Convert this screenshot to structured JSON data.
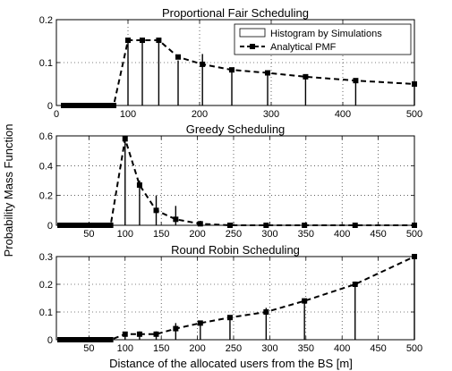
{
  "figure": {
    "ylabel": "Probability Mass Function",
    "xlabel": "Distance of the allocated users from the BS [m]"
  },
  "chart_data": [
    {
      "type": "bar",
      "title": "Proportional Fair Scheduling",
      "xlim": [
        0,
        500
      ],
      "ylim": [
        0,
        0.2
      ],
      "xticks": [
        0,
        100,
        200,
        300,
        400,
        500
      ],
      "yticks": [
        0,
        0.1,
        0.2
      ],
      "grid": true,
      "legend": {
        "placement": "top-right",
        "entries": [
          "Histogram by Simulations",
          "Analytical PMF"
        ]
      },
      "x": [
        10,
        15,
        20,
        25,
        30,
        35,
        40,
        45,
        50,
        55,
        60,
        65,
        70,
        75,
        80,
        100,
        120,
        143,
        170,
        204,
        245,
        295,
        348,
        418,
        500
      ],
      "series": [
        {
          "name": "Histogram by Simulations",
          "style": "stem",
          "values": [
            0,
            0,
            0,
            0,
            0,
            0,
            0,
            0,
            0,
            0,
            0,
            0,
            0,
            0,
            0,
            0.15,
            0.155,
            0.155,
            0.105,
            0.12,
            0.083,
            0.077,
            0.069,
            0.06,
            0.055
          ]
        },
        {
          "name": "Analytical PMF",
          "style": "dashed-square",
          "values": [
            0,
            0,
            0,
            0,
            0,
            0,
            0,
            0,
            0,
            0,
            0,
            0,
            0,
            0,
            0,
            0.152,
            0.152,
            0.152,
            0.113,
            0.096,
            0.083,
            0.076,
            0.067,
            0.058,
            0.05
          ]
        }
      ]
    },
    {
      "type": "bar",
      "title": "Greedy Scheduling",
      "xlim": [
        5,
        500
      ],
      "ylim": [
        0,
        0.6
      ],
      "xticks": [
        50,
        100,
        150,
        200,
        250,
        300,
        350,
        400,
        450,
        500
      ],
      "yticks": [
        0,
        0.2,
        0.4,
        0.6
      ],
      "grid": true,
      "x": [
        10,
        15,
        20,
        25,
        30,
        35,
        40,
        45,
        50,
        55,
        60,
        65,
        70,
        75,
        80,
        100,
        120,
        143,
        170,
        204,
        245,
        295,
        348,
        418,
        500
      ],
      "series": [
        {
          "name": "Histogram by Simulations",
          "style": "stem",
          "values": [
            0,
            0,
            0,
            0,
            0,
            0,
            0,
            0,
            0,
            0,
            0,
            0,
            0,
            0,
            0,
            0.6,
            0.3,
            0.2,
            0.13,
            0.03,
            0.01,
            0,
            0,
            0,
            0
          ]
        },
        {
          "name": "Analytical PMF",
          "style": "dashed-square",
          "values": [
            0,
            0,
            0,
            0,
            0,
            0,
            0,
            0,
            0,
            0,
            0,
            0,
            0,
            0,
            0,
            0.58,
            0.27,
            0.1,
            0.04,
            0.01,
            0,
            0,
            0,
            0,
            0
          ]
        }
      ]
    },
    {
      "type": "bar",
      "title": "Round Robin Scheduling",
      "xlim": [
        5,
        500
      ],
      "ylim": [
        0,
        0.3
      ],
      "xticks": [
        50,
        100,
        150,
        200,
        250,
        300,
        350,
        400,
        450,
        500
      ],
      "yticks": [
        0,
        0.1,
        0.2,
        0.3
      ],
      "grid": true,
      "x": [
        10,
        15,
        20,
        25,
        30,
        35,
        40,
        45,
        50,
        55,
        60,
        65,
        70,
        75,
        80,
        100,
        120,
        143,
        170,
        204,
        245,
        295,
        348,
        418,
        500
      ],
      "series": [
        {
          "name": "Histogram by Simulations",
          "style": "stem",
          "values": [
            0,
            0,
            0,
            0,
            0,
            0,
            0,
            0,
            0,
            0,
            0,
            0,
            0,
            0,
            0,
            0.025,
            0.03,
            0.03,
            0.06,
            0.065,
            0.085,
            0.115,
            0.14,
            0.21,
            0.305
          ]
        },
        {
          "name": "Analytical PMF",
          "style": "dashed-square",
          "values": [
            0,
            0,
            0,
            0,
            0,
            0,
            0,
            0,
            0,
            0,
            0,
            0,
            0,
            0,
            0,
            0.02,
            0.02,
            0.02,
            0.04,
            0.06,
            0.08,
            0.1,
            0.14,
            0.2,
            0.3
          ]
        }
      ]
    }
  ]
}
